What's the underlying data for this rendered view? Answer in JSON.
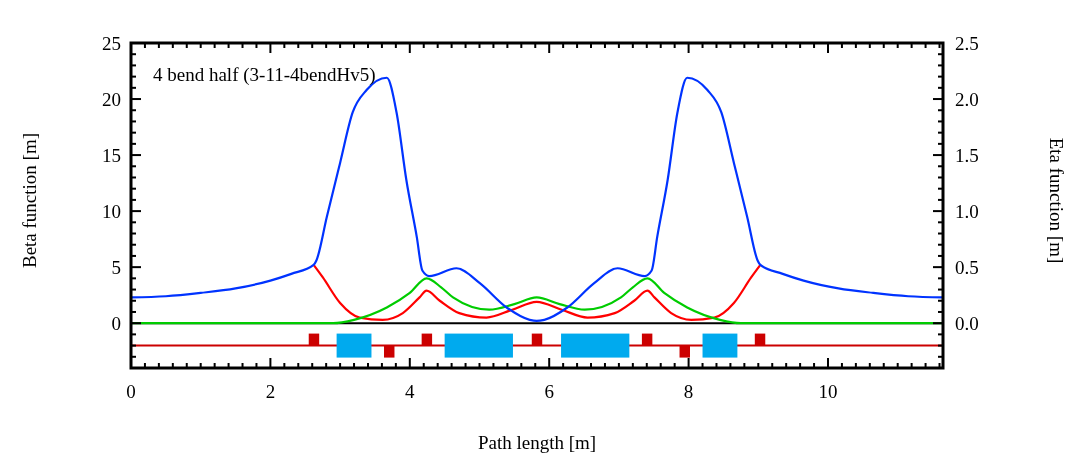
{
  "chart_data": {
    "type": "line",
    "xlabel": "Path length [m]",
    "ylabel": "Beta function [m]",
    "y2label": "Eta function [m]",
    "annotations": [
      "4 bend half (3-11-4bendHv5)"
    ],
    "xlim": [
      0,
      11.65
    ],
    "ylim": [
      -4,
      25
    ],
    "y2lim": [
      -0.4,
      2.5
    ],
    "xticks": [
      0,
      {
        "value": 0.2,
        "label": null
      },
      {
        "value": 0.4,
        "label": null
      },
      {
        "value": 0.6,
        "label": null
      },
      {
        "value": 0.8,
        "label": null
      },
      {
        "value": 1,
        "label": null
      },
      {
        "value": 1.2,
        "label": null
      },
      {
        "value": 1.4,
        "label": null
      },
      {
        "value": 1.6,
        "label": null
      },
      {
        "value": 1.8,
        "label": null
      },
      2,
      {
        "value": 2.2,
        "label": null
      },
      {
        "value": 2.4,
        "label": null
      },
      {
        "value": 2.6,
        "label": null
      },
      {
        "value": 2.8,
        "label": null
      },
      {
        "value": 3,
        "label": null
      },
      {
        "value": 3.2,
        "label": null
      },
      {
        "value": 3.4,
        "label": null
      },
      {
        "value": 3.6,
        "label": null
      },
      {
        "value": 3.8,
        "label": null
      },
      4,
      {
        "value": 4.2,
        "label": null
      },
      {
        "value": 4.4,
        "label": null
      },
      {
        "value": 4.6,
        "label": null
      },
      {
        "value": 4.8,
        "label": null
      },
      {
        "value": 5,
        "label": null
      },
      {
        "value": 5.2,
        "label": null
      },
      {
        "value": 5.4,
        "label": null
      },
      {
        "value": 5.6,
        "label": null
      },
      {
        "value": 5.8,
        "label": null
      },
      6,
      {
        "value": 6.2,
        "label": null
      },
      {
        "value": 6.4,
        "label": null
      },
      {
        "value": 6.6,
        "label": null
      },
      {
        "value": 6.8,
        "label": null
      },
      {
        "value": 7,
        "label": null
      },
      {
        "value": 7.2,
        "label": null
      },
      {
        "value": 7.4,
        "label": null
      },
      {
        "value": 7.6,
        "label": null
      },
      {
        "value": 7.8,
        "label": null
      },
      8,
      {
        "value": 8.2,
        "label": null
      },
      {
        "value": 8.4,
        "label": null
      },
      {
        "value": 8.6,
        "label": null
      },
      {
        "value": 8.8,
        "label": null
      },
      {
        "value": 9,
        "label": null
      },
      {
        "value": 9.2,
        "label": null
      },
      {
        "value": 9.4,
        "label": null
      },
      {
        "value": 9.6,
        "label": null
      },
      {
        "value": 9.8,
        "label": null
      },
      10,
      {
        "value": 10.2,
        "label": null
      },
      {
        "value": 10.4,
        "label": null
      },
      {
        "value": 10.6,
        "label": null
      },
      {
        "value": 10.8,
        "label": null
      },
      {
        "value": 11,
        "label": null
      },
      {
        "value": 11.2,
        "label": null
      },
      {
        "value": 11.4,
        "label": null
      },
      {
        "value": 11.6,
        "label": null
      }
    ],
    "yticks": [
      {
        "value": -4,
        "label": null
      },
      {
        "value": -3,
        "label": null
      },
      {
        "value": -2,
        "label": null
      },
      {
        "value": -1,
        "label": null
      },
      0,
      {
        "value": 1,
        "label": null
      },
      {
        "value": 2,
        "label": null
      },
      {
        "value": 3,
        "label": null
      },
      {
        "value": 4,
        "label": null
      },
      5,
      {
        "value": 6,
        "label": null
      },
      {
        "value": 7,
        "label": null
      },
      {
        "value": 8,
        "label": null
      },
      {
        "value": 9,
        "label": null
      },
      10,
      {
        "value": 11,
        "label": null
      },
      {
        "value": 12,
        "label": null
      },
      {
        "value": 13,
        "label": null
      },
      {
        "value": 14,
        "label": null
      },
      15,
      {
        "value": 16,
        "label": null
      },
      {
        "value": 17,
        "label": null
      },
      {
        "value": 18,
        "label": null
      },
      {
        "value": 19,
        "label": null
      },
      20,
      {
        "value": 21,
        "label": null
      },
      {
        "value": 22,
        "label": null
      },
      {
        "value": 23,
        "label": null
      },
      {
        "value": 24,
        "label": null
      },
      25
    ],
    "y2ticks": [
      {
        "value": -0.4,
        "label": null
      },
      {
        "value": -0.3,
        "label": null
      },
      {
        "value": -0.2,
        "label": null
      },
      {
        "value": -0.1,
        "label": null
      },
      {
        "value": 0,
        "label": "0.0"
      },
      {
        "value": 0.1,
        "label": null
      },
      {
        "value": 0.2,
        "label": null
      },
      {
        "value": 0.3,
        "label": null
      },
      {
        "value": 0.4,
        "label": null
      },
      {
        "value": 0.5,
        "label": "0.5"
      },
      {
        "value": 0.6,
        "label": null
      },
      {
        "value": 0.7,
        "label": null
      },
      {
        "value": 0.8,
        "label": null
      },
      {
        "value": 0.9,
        "label": null
      },
      {
        "value": 1,
        "label": "1.0"
      },
      {
        "value": 1.1,
        "label": null
      },
      {
        "value": 1.2,
        "label": null
      },
      {
        "value": 1.3,
        "label": null
      },
      {
        "value": 1.4,
        "label": null
      },
      {
        "value": 1.5,
        "label": "1.5"
      },
      {
        "value": 1.6,
        "label": null
      },
      {
        "value": 1.7,
        "label": null
      },
      {
        "value": 1.8,
        "label": null
      },
      {
        "value": 1.9,
        "label": null
      },
      {
        "value": 2,
        "label": "2.0"
      },
      {
        "value": 2.1,
        "label": null
      },
      {
        "value": 2.2,
        "label": null
      },
      {
        "value": 2.3,
        "label": null
      },
      {
        "value": 2.4,
        "label": null
      },
      {
        "value": 2.5,
        "label": "2.5"
      }
    ],
    "grid": false,
    "marker": "none",
    "line_style": "solid",
    "ref_lines": [
      {
        "axis": "y",
        "value": 0,
        "color": "#000000"
      },
      {
        "axis": "y",
        "value": -2,
        "color": "#cc0000"
      }
    ],
    "series": [
      {
        "color": "#ff0000",
        "x": [
          2.62,
          2.75,
          3.0,
          3.28,
          3.61,
          3.9,
          4.14,
          4.24,
          4.43,
          4.71,
          5.1,
          5.47,
          5.82,
          6.18,
          6.55,
          6.94,
          7.22,
          7.41,
          7.51,
          7.75,
          8.04,
          8.37,
          8.65,
          8.9,
          9.03
        ],
        "values": [
          5.2,
          4.1,
          1.8,
          0.5,
          0.3,
          0.9,
          2.3,
          2.9,
          2.0,
          0.9,
          0.5,
          1.2,
          1.9,
          1.2,
          0.5,
          0.9,
          2.0,
          2.9,
          2.3,
          0.9,
          0.3,
          0.5,
          1.8,
          4.1,
          5.2
        ]
      },
      {
        "color": "#00cc00",
        "axis": "y2",
        "x": [
          0,
          1,
          2,
          2.9,
          3.2,
          3.67,
          4.0,
          4.24,
          4.45,
          4.62,
          5.14,
          5.5,
          5.82,
          6.15,
          6.51,
          7.03,
          7.2,
          7.41,
          7.65,
          7.98,
          8.45,
          8.75,
          9.65,
          10.65,
          11.65
        ],
        "values": [
          0,
          0,
          0,
          0,
          0.03,
          0.14,
          0.27,
          0.4,
          0.32,
          0.23,
          0.12,
          0.17,
          0.23,
          0.17,
          0.12,
          0.23,
          0.32,
          0.4,
          0.27,
          0.14,
          0.03,
          0,
          0,
          0,
          0
        ]
      },
      {
        "color": "#0033ff",
        "x": [
          0,
          0.5,
          1,
          1.5,
          2,
          2.3,
          2.62,
          2.66,
          2.81,
          3.0,
          3.18,
          3.38,
          3.67,
          3.81,
          3.95,
          4.1,
          4.18,
          4.28,
          4.67,
          5.0,
          5.39,
          5.72,
          5.82,
          5.93,
          6.26,
          6.65,
          6.98,
          7.37,
          7.47,
          7.55,
          7.7,
          7.84,
          7.98,
          8.27,
          8.47,
          8.65,
          8.84,
          8.99,
          9.03,
          9.35,
          9.65,
          10.15,
          10.65,
          11.15,
          11.65
        ],
        "values": [
          2.3,
          2.4,
          2.7,
          3.1,
          3.8,
          4.4,
          5.2,
          5.6,
          9.5,
          14.3,
          18.8,
          20.8,
          21.9,
          18.8,
          12.8,
          7.7,
          4.7,
          4.2,
          4.9,
          3.6,
          1.4,
          0.3,
          0.2,
          0.3,
          1.4,
          3.6,
          4.9,
          4.2,
          4.7,
          7.7,
          12.8,
          18.8,
          21.9,
          20.8,
          18.8,
          14.3,
          9.5,
          5.6,
          5.2,
          4.4,
          3.8,
          3.1,
          2.7,
          2.4,
          2.3
        ]
      }
    ]
  }
}
